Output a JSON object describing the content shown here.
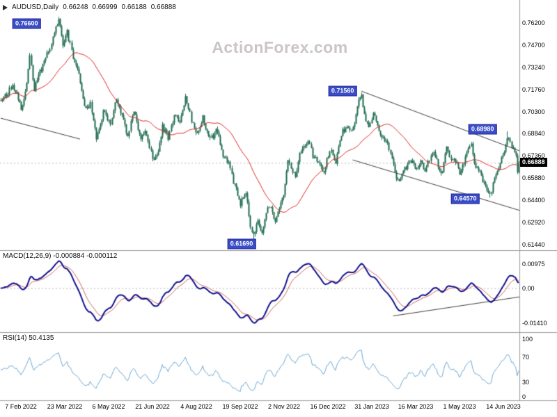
{
  "header": {
    "symbol": "AUDUSD,Daily",
    "open": "0.66248",
    "high": "0.66999",
    "low": "0.66188",
    "close": "0.66888"
  },
  "watermark": "ActionForex.com",
  "panels": {
    "macd": {
      "label": "MACD(12,26,9) -0.000884 -0.000112"
    },
    "rsi": {
      "label": "RSI(14) 50.4135"
    }
  },
  "price_axis": {
    "current": "0.66888"
  },
  "colors": {
    "candle": "#1d6a4e",
    "ma": "#dd2222",
    "macd": "#10108f",
    "macd_signal": "#cc6055",
    "rsi": "#6ba6d2",
    "tag_blue": "#3a4cc6",
    "tag_border": "#222a99",
    "tag_black": "#000000",
    "trend": "#3c3c3c",
    "separator": "#999999",
    "dotted": "#b5b5b5",
    "watermark": "#ccc5c5"
  },
  "chart_data": [
    {
      "type": "candlestick",
      "title": "AUDUSD,Daily",
      "ylim": [
        0.6116,
        0.7736
      ],
      "y_ticks": [
        "0.76200",
        "0.74700",
        "0.73240",
        "0.71760",
        "0.70300",
        "0.68840",
        "0.67360",
        "0.65880",
        "0.64400",
        "0.62920",
        "0.61440"
      ],
      "x_tick_labels": [
        "7 Feb 2022",
        "23 Mar 2022",
        "6 May 2022",
        "21 Jun 2022",
        "4 Aug 2022",
        "19 Sep 2022",
        "2 Nov 2022",
        "16 Dec 2022",
        "31 Jan 2023",
        "16 Mar 2023",
        "1 May 2023",
        "14 Jun 2023"
      ],
      "ma_period": 34,
      "last_ohlc": {
        "open": 0.66248,
        "high": 0.66999,
        "low": 0.66188,
        "close": 0.66888
      },
      "current_price": 0.66888,
      "price_anchors": [
        [
          0,
          0.71
        ],
        [
          4,
          0.7145
        ],
        [
          8,
          0.7205
        ],
        [
          12,
          0.7125
        ],
        [
          14,
          0.706
        ],
        [
          17,
          0.715
        ],
        [
          20,
          0.742
        ],
        [
          23,
          0.718
        ],
        [
          27,
          0.729
        ],
        [
          31,
          0.738
        ],
        [
          35,
          0.748
        ],
        [
          40,
          0.7655
        ],
        [
          43,
          0.748
        ],
        [
          46,
          0.756
        ],
        [
          50,
          0.739
        ],
        [
          54,
          0.728
        ],
        [
          58,
          0.706
        ],
        [
          62,
          0.7075
        ],
        [
          66,
          0.686
        ],
        [
          69,
          0.696
        ],
        [
          72,
          0.705
        ],
        [
          76,
          0.693
        ],
        [
          80,
          0.712
        ],
        [
          84,
          0.699
        ],
        [
          88,
          0.687
        ],
        [
          92,
          0.703
        ],
        [
          97,
          0.685
        ],
        [
          100,
          0.69
        ],
        [
          103,
          0.679
        ],
        [
          106,
          0.669
        ],
        [
          109,
          0.677
        ],
        [
          112,
          0.693
        ],
        [
          116,
          0.685
        ],
        [
          120,
          0.701
        ],
        [
          124,
          0.695
        ],
        [
          128,
          0.7125
        ],
        [
          132,
          0.698
        ],
        [
          136,
          0.6875
        ],
        [
          140,
          0.699
        ],
        [
          143,
          0.689
        ],
        [
          146,
          0.6855
        ],
        [
          150,
          0.691
        ],
        [
          154,
          0.672
        ],
        [
          158,
          0.67
        ],
        [
          161,
          0.656
        ],
        [
          163,
          0.651
        ],
        [
          166,
          0.642
        ],
        [
          170,
          0.65
        ],
        [
          173,
          0.628
        ],
        [
          175,
          0.6195
        ],
        [
          178,
          0.631
        ],
        [
          181,
          0.623
        ],
        [
          186,
          0.641
        ],
        [
          190,
          0.63
        ],
        [
          193,
          0.64
        ],
        [
          196,
          0.647
        ],
        [
          199,
          0.6725
        ],
        [
          202,
          0.664
        ],
        [
          204,
          0.661
        ],
        [
          207,
          0.674
        ],
        [
          210,
          0.679
        ],
        [
          213,
          0.6845
        ],
        [
          216,
          0.674
        ],
        [
          220,
          0.67
        ],
        [
          224,
          0.6635
        ],
        [
          228,
          0.678
        ],
        [
          232,
          0.67
        ],
        [
          236,
          0.688
        ],
        [
          240,
          0.694
        ],
        [
          243,
          0.69
        ],
        [
          246,
          0.7
        ],
        [
          248,
          0.7095
        ],
        [
          250,
          0.714
        ],
        [
          252,
          0.7
        ],
        [
          255,
          0.6925
        ],
        [
          258,
          0.701
        ],
        [
          261,
          0.694
        ],
        [
          264,
          0.687
        ],
        [
          268,
          0.6815
        ],
        [
          271,
          0.67
        ],
        [
          274,
          0.66
        ],
        [
          277,
          0.6575
        ],
        [
          280,
          0.6655
        ],
        [
          284,
          0.67
        ],
        [
          288,
          0.6655
        ],
        [
          291,
          0.67
        ],
        [
          294,
          0.6645
        ],
        [
          297,
          0.671
        ],
        [
          300,
          0.6775
        ],
        [
          303,
          0.6655
        ],
        [
          306,
          0.6625
        ],
        [
          309,
          0.679
        ],
        [
          312,
          0.67
        ],
        [
          315,
          0.6695
        ],
        [
          318,
          0.6615
        ],
        [
          321,
          0.668
        ],
        [
          324,
          0.6775
        ],
        [
          326,
          0.6805
        ],
        [
          329,
          0.665
        ],
        [
          332,
          0.6625
        ],
        [
          335,
          0.6545
        ],
        [
          337,
          0.65
        ],
        [
          339,
          0.647
        ],
        [
          343,
          0.6615
        ],
        [
          346,
          0.669
        ],
        [
          349,
          0.6775
        ],
        [
          351,
          0.6865
        ],
        [
          354,
          0.6805
        ],
        [
          356,
          0.6745
        ],
        [
          358,
          0.6695
        ],
        [
          359,
          0.66888
        ]
      ],
      "swing_labels": [
        {
          "text": "0.76600",
          "i": 40,
          "price": 0.766,
          "side": "high",
          "label_i": 18,
          "label_price": 0.7615
        },
        {
          "text": "0.71560",
          "i": 250,
          "price": 0.7156,
          "side": "high",
          "label_i": 237,
          "label_price": 0.7168
        },
        {
          "text": "0.68980",
          "i": 351,
          "price": 0.6898,
          "side": "high",
          "label_i": 334,
          "label_price": 0.6912
        },
        {
          "text": "0.64570",
          "i": 339,
          "price": 0.6457,
          "side": "low",
          "label_i": 322,
          "label_price": 0.645
        },
        {
          "text": "0.61690",
          "i": 175,
          "price": 0.6169,
          "side": "low",
          "label_i": 167,
          "label_price": 0.615
        }
      ],
      "trend_lines": [
        [
          0,
          0.6986,
          55,
          0.6847
        ],
        [
          250,
          0.7166,
          362,
          0.676
        ],
        [
          244,
          0.6708,
          362,
          0.6365
        ]
      ]
    },
    {
      "type": "line",
      "name": "MACD(12,26,9)",
      "params": [
        12,
        26,
        9
      ],
      "values_display": [
        "-0.000884",
        "-0.000112"
      ],
      "ylim": [
        -0.0165,
        0.0135
      ],
      "y_ticks": [
        "0.00975",
        "0.00",
        "-0.01410"
      ],
      "trend_lines": [
        [
          272,
          -0.0111,
          362,
          -0.0033
        ]
      ]
    },
    {
      "type": "line",
      "name": "RSI(14)",
      "period": 14,
      "value_display": "50.4135",
      "ylim": [
        0,
        110
      ],
      "y_ticks": [
        "100",
        "70",
        "30",
        "0"
      ]
    }
  ]
}
